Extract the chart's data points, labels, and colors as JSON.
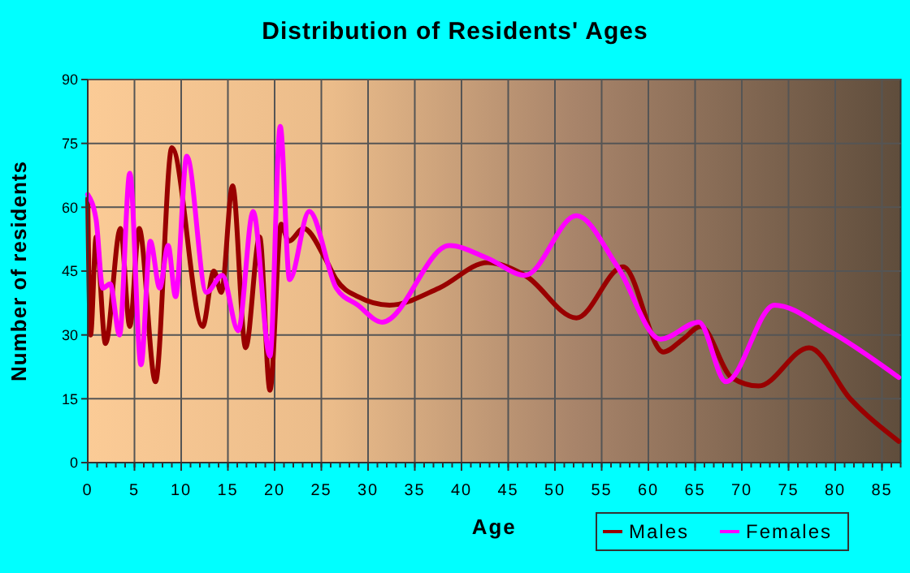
{
  "chart_data": {
    "type": "line",
    "title": "Distribution of Residents' Ages",
    "xlabel": "Age",
    "ylabel": "Number of residents",
    "xlim": [
      0,
      87
    ],
    "ylim": [
      0,
      90
    ],
    "xticks": [
      0,
      5,
      10,
      15,
      20,
      25,
      30,
      35,
      40,
      45,
      50,
      55,
      60,
      65,
      70,
      75,
      80,
      85
    ],
    "yticks": [
      0,
      15,
      30,
      45,
      60,
      75,
      90
    ],
    "grid": true,
    "legend": "bottom right",
    "marker": "none",
    "line_style": "solid",
    "series": [
      {
        "name": "Males",
        "color": "#990000",
        "x": [
          0,
          0.3,
          0.9,
          1.9,
          3.5,
          4.5,
          5.5,
          7.25,
          9,
          12.3,
          13.5,
          14.3,
          15.5,
          16.9,
          18.4,
          19.5,
          20.7,
          21.5,
          23.1,
          25.4,
          26.6,
          28.9,
          32.3,
          37.6,
          42.8,
          46.8,
          52.3,
          57.3,
          61.6,
          63.7,
          65.6,
          68.9,
          71.8,
          77.2,
          81.6,
          86.8
        ],
        "values": [
          62,
          30,
          53,
          28,
          55,
          32,
          55,
          19,
          74,
          32,
          45,
          40,
          65,
          27,
          53,
          17,
          56,
          52,
          55,
          48,
          43,
          39,
          37,
          41,
          47,
          44,
          34,
          46,
          26,
          29,
          32,
          20,
          18,
          27,
          15,
          5
        ]
      },
      {
        "name": "Females",
        "color": "#ff00ff",
        "x": [
          0,
          0.9,
          1.6,
          2.4,
          3.4,
          4.5,
          5.7,
          6.7,
          7.7,
          8.6,
          9.4,
          10.6,
          12.7,
          14.4,
          16.1,
          17.7,
          19.5,
          20.6,
          21.6,
          23.7,
          26.6,
          28.9,
          31.5,
          38.7,
          42.8,
          46.8,
          52.3,
          56.7,
          61.3,
          65.4,
          68.3,
          73.5,
          79.3,
          86.8
        ],
        "values": [
          63,
          57,
          41,
          42,
          30,
          68,
          23,
          52,
          41,
          51,
          39,
          72,
          40,
          44,
          31,
          59,
          25,
          79,
          43,
          59,
          41,
          37,
          33,
          51,
          48,
          44,
          58,
          46,
          29,
          33,
          19,
          37,
          31,
          20
        ]
      }
    ]
  }
}
